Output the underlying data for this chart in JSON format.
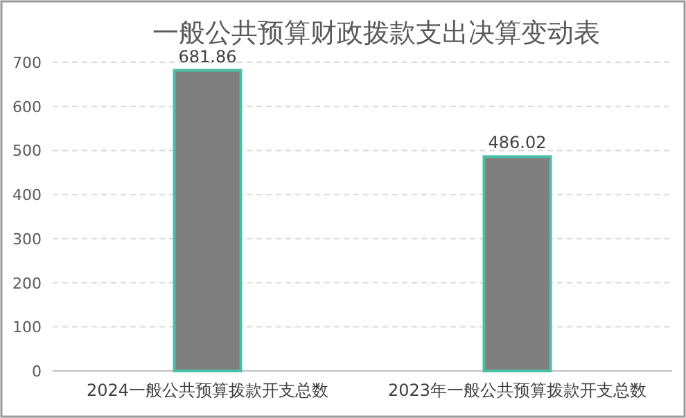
{
  "chart_data": {
    "type": "bar",
    "title": "一般公共预算财政拨款支出决算变动表",
    "categories": [
      "2024一般公共预算拨款开支总数",
      "2023年一般公共预算拨款开支总数"
    ],
    "values": [
      681.86,
      486.02
    ],
    "color": "#7f7f7f",
    "ylim": [
      0,
      700
    ],
    "yticks": [
      0,
      100,
      200,
      300,
      400,
      500,
      600,
      700
    ],
    "grid": "y",
    "data_labels": true
  }
}
